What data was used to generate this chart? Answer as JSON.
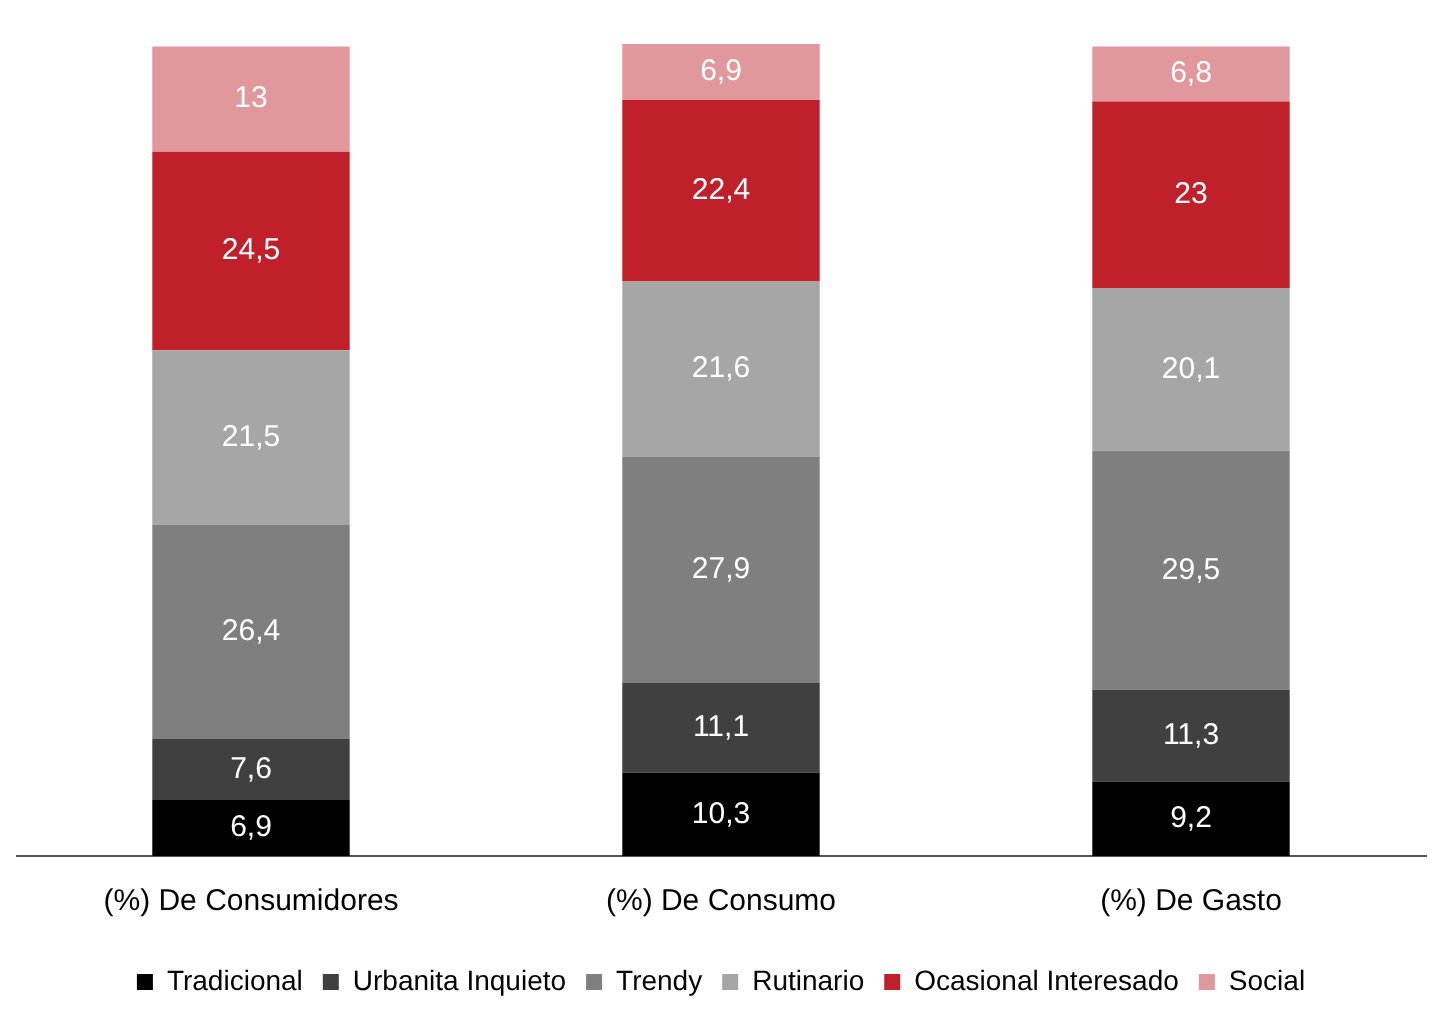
{
  "chart_data": {
    "type": "bar",
    "stacked": true,
    "categories": [
      "(%) De Consumidores",
      "(%) De Consumo",
      "(%) De Gasto"
    ],
    "series": [
      {
        "name": "Tradicional",
        "color": "#000000",
        "values": [
          6.9,
          10.3,
          9.2
        ],
        "value_labels": [
          "6,9",
          "10,3",
          "9,2"
        ]
      },
      {
        "name": "Urbanita Inquieto",
        "color": "#404040",
        "values": [
          7.6,
          11.1,
          11.3
        ],
        "value_labels": [
          "7,6",
          "11,1",
          "11,3"
        ]
      },
      {
        "name": "Trendy",
        "color": "#7f7f7f",
        "values": [
          26.4,
          27.9,
          29.5
        ],
        "value_labels": [
          "26,4",
          "27,9",
          "29,5"
        ]
      },
      {
        "name": "Rutinario",
        "color": "#a6a6a6",
        "values": [
          21.5,
          21.6,
          20.1
        ],
        "value_labels": [
          "21,5",
          "21,6",
          "20,1"
        ]
      },
      {
        "name": "Ocasional Interesado",
        "color": "#c0202a",
        "values": [
          24.5,
          22.4,
          23
        ],
        "value_labels": [
          "24,5",
          "22,4",
          "23"
        ]
      },
      {
        "name": "Social",
        "color": "#e0989c",
        "values": [
          13,
          6.9,
          6.8
        ],
        "value_labels": [
          "13",
          "6,9",
          "6,8"
        ]
      }
    ],
    "legend": "bottom",
    "grid": false
  }
}
